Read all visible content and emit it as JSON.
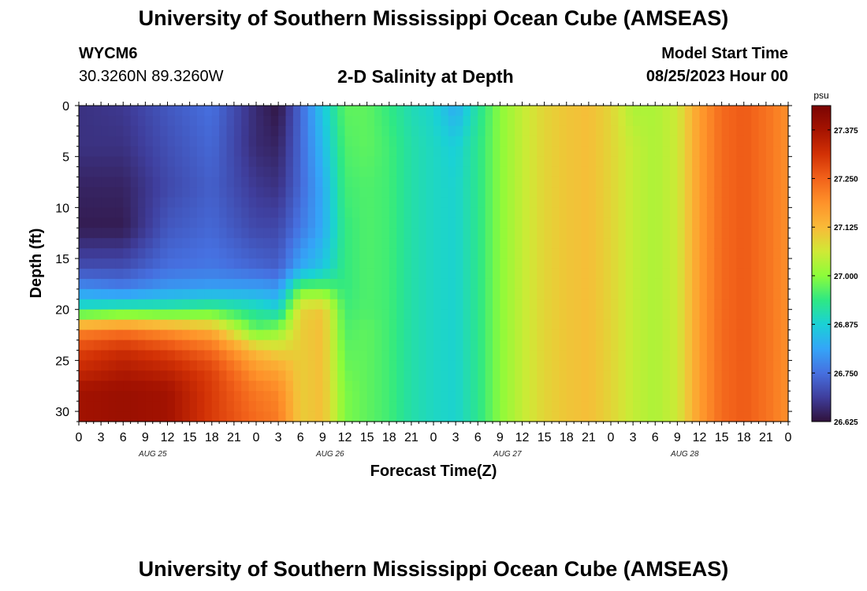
{
  "header": {
    "title": "University of Southern Mississippi Ocean Cube (AMSEAS)",
    "station_id": "WYCM6",
    "station_coords": "30.3260N  89.3260W",
    "plot_title": "2-D Salinity at Depth",
    "start_label": "Model Start Time",
    "start_value": "08/25/2023 Hour 00"
  },
  "footer": {
    "title": "University of Southern Mississippi Ocean Cube (AMSEAS)"
  },
  "chart_data": {
    "type": "heatmap",
    "title": "2-D Salinity at Depth",
    "xlabel": "Forecast Time(Z)",
    "ylabel": "Depth (ft)",
    "x_tick_labels": [
      "0",
      "3",
      "6",
      "9",
      "12",
      "15",
      "18",
      "21",
      "0",
      "3",
      "6",
      "9",
      "12",
      "15",
      "18",
      "21",
      "0",
      "3",
      "6",
      "9",
      "12",
      "15",
      "18",
      "21",
      "0",
      "3",
      "6",
      "9",
      "12",
      "15",
      "18",
      "21",
      "0"
    ],
    "x_day_labels": [
      "AUG 25",
      "AUG 26",
      "AUG 27",
      "AUG 28"
    ],
    "x_range_hours": [
      0,
      96
    ],
    "y_ticks": [
      0,
      5,
      10,
      15,
      20,
      25,
      30
    ],
    "y_range": [
      0,
      31
    ],
    "y_inverted": true,
    "colorbar": {
      "units": "psu",
      "min": 26.625,
      "max": 27.4375,
      "tick_values": [
        26.625,
        26.75,
        26.875,
        27.0,
        27.125,
        27.25,
        27.375
      ],
      "tick_labels": [
        "26.625",
        "26.750",
        "26.875",
        "27.000",
        "27.125",
        "27.250",
        "27.375"
      ],
      "colors": [
        "#30123b",
        "#3f3e9c",
        "#4670e0",
        "#34a5f8",
        "#1ad1d6",
        "#2ee884",
        "#8cfc3a",
        "#d0e936",
        "#f9ba38",
        "#fe922a",
        "#f2621a",
        "#d23105",
        "#a51301",
        "#7a0403"
      ]
    },
    "profiles_hours": [
      0,
      6,
      12,
      18,
      24,
      27,
      30,
      33,
      36,
      39,
      42,
      45,
      48,
      51,
      54,
      57,
      60,
      63,
      66,
      69,
      72,
      75,
      78,
      81,
      84,
      87,
      90,
      93,
      96
    ],
    "profile_depths_ft": [
      0,
      4,
      8,
      12,
      16,
      18,
      20,
      22,
      24,
      26,
      28,
      31
    ],
    "salinity_psu": [
      [
        26.67,
        26.67,
        26.65,
        26.64,
        26.71,
        26.79,
        26.91,
        27.2,
        27.29,
        27.33,
        27.38,
        27.38
      ],
      [
        26.68,
        26.67,
        26.65,
        26.64,
        26.71,
        26.77,
        26.93,
        27.22,
        27.32,
        27.36,
        27.39,
        27.39
      ],
      [
        26.72,
        26.71,
        26.7,
        26.72,
        26.75,
        26.8,
        26.93,
        27.18,
        27.29,
        27.34,
        27.38,
        27.38
      ],
      [
        26.75,
        26.74,
        26.73,
        26.74,
        26.76,
        26.81,
        26.95,
        27.14,
        27.24,
        27.29,
        27.3,
        27.3
      ],
      [
        26.66,
        26.66,
        26.68,
        26.7,
        26.74,
        26.81,
        26.91,
        26.97,
        27.12,
        27.18,
        27.22,
        27.24
      ],
      [
        26.63,
        26.65,
        26.67,
        26.7,
        26.73,
        26.8,
        26.88,
        27.0,
        27.09,
        27.16,
        27.2,
        27.22
      ],
      [
        26.74,
        26.74,
        26.74,
        26.76,
        26.82,
        26.98,
        27.09,
        27.1,
        27.1,
        27.1,
        27.1,
        27.1
      ],
      [
        26.86,
        26.84,
        26.82,
        26.82,
        26.86,
        26.98,
        27.11,
        27.12,
        27.12,
        27.12,
        27.12,
        27.12
      ],
      [
        26.97,
        26.96,
        26.95,
        26.94,
        26.94,
        26.94,
        26.95,
        26.96,
        26.97,
        26.98,
        26.99,
        26.99
      ],
      [
        26.97,
        26.97,
        26.96,
        26.96,
        26.96,
        26.96,
        26.96,
        26.97,
        26.97,
        26.97,
        26.97,
        26.97
      ],
      [
        26.94,
        26.95,
        26.95,
        26.95,
        26.95,
        26.95,
        26.95,
        26.95,
        26.95,
        26.95,
        26.95,
        26.95
      ],
      [
        26.9,
        26.91,
        26.91,
        26.91,
        26.91,
        26.91,
        26.91,
        26.91,
        26.91,
        26.91,
        26.91,
        26.91
      ],
      [
        26.88,
        26.89,
        26.89,
        26.89,
        26.89,
        26.89,
        26.89,
        26.89,
        26.89,
        26.89,
        26.89,
        26.89
      ],
      [
        26.82,
        26.87,
        26.88,
        26.88,
        26.88,
        26.88,
        26.88,
        26.88,
        26.88,
        26.88,
        26.88,
        26.88
      ],
      [
        26.92,
        26.93,
        26.93,
        26.93,
        26.93,
        26.93,
        26.93,
        26.93,
        26.93,
        26.93,
        26.93,
        26.93
      ],
      [
        27.0,
        27.0,
        27.0,
        27.0,
        27.0,
        27.0,
        27.0,
        27.0,
        27.0,
        27.0,
        27.0,
        27.0
      ],
      [
        27.05,
        27.05,
        27.05,
        27.05,
        27.05,
        27.05,
        27.05,
        27.05,
        27.05,
        27.05,
        27.05,
        27.05
      ],
      [
        27.09,
        27.09,
        27.09,
        27.09,
        27.09,
        27.09,
        27.09,
        27.09,
        27.09,
        27.09,
        27.09,
        27.09
      ],
      [
        27.11,
        27.11,
        27.11,
        27.11,
        27.11,
        27.11,
        27.11,
        27.11,
        27.11,
        27.11,
        27.11,
        27.11
      ],
      [
        27.12,
        27.12,
        27.12,
        27.12,
        27.12,
        27.12,
        27.12,
        27.12,
        27.12,
        27.12,
        27.12,
        27.12
      ],
      [
        27.09,
        27.09,
        27.09,
        27.09,
        27.09,
        27.09,
        27.09,
        27.09,
        27.09,
        27.09,
        27.09,
        27.09
      ],
      [
        27.03,
        27.05,
        27.05,
        27.05,
        27.05,
        27.05,
        27.05,
        27.05,
        27.05,
        27.05,
        27.05,
        27.05
      ],
      [
        27.03,
        27.03,
        27.03,
        27.03,
        27.03,
        27.03,
        27.03,
        27.03,
        27.03,
        27.03,
        27.03,
        27.03
      ],
      [
        27.06,
        27.06,
        27.06,
        27.06,
        27.06,
        27.06,
        27.06,
        27.06,
        27.06,
        27.06,
        27.06,
        27.06
      ],
      [
        27.17,
        27.17,
        27.17,
        27.17,
        27.17,
        27.17,
        27.17,
        27.17,
        27.17,
        27.17,
        27.17,
        27.17
      ],
      [
        27.24,
        27.24,
        27.24,
        27.24,
        27.24,
        27.24,
        27.24,
        27.24,
        27.24,
        27.24,
        27.24,
        27.24
      ],
      [
        27.26,
        27.26,
        27.26,
        27.26,
        27.26,
        27.26,
        27.26,
        27.26,
        27.26,
        27.26,
        27.26,
        27.26
      ],
      [
        27.23,
        27.23,
        27.23,
        27.23,
        27.23,
        27.23,
        27.23,
        27.23,
        27.23,
        27.23,
        27.23,
        27.23
      ],
      [
        27.19,
        27.19,
        27.19,
        27.19,
        27.19,
        27.19,
        27.19,
        27.19,
        27.19,
        27.19,
        27.19,
        27.19
      ]
    ]
  }
}
